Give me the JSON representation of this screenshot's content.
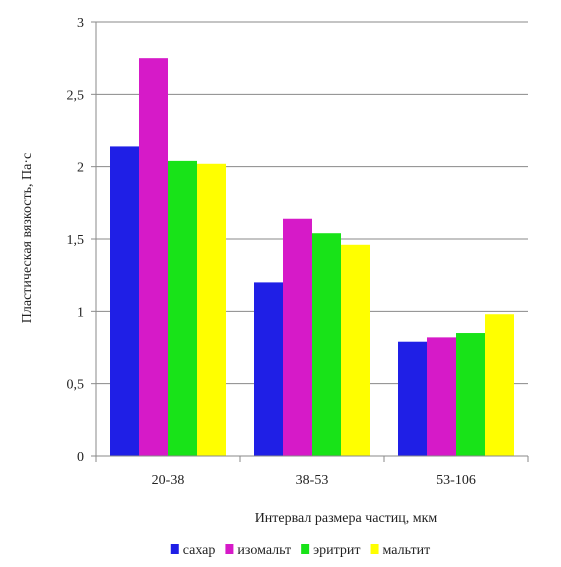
{
  "chart_data": {
    "type": "bar",
    "categories": [
      "20-38",
      "38-53",
      "53-106"
    ],
    "series": [
      {
        "name": "сахар",
        "values": [
          2.14,
          1.2,
          0.79
        ],
        "color": "#1f1fe6"
      },
      {
        "name": "изомальт",
        "values": [
          2.75,
          1.64,
          0.82
        ],
        "color": "#d61ac8"
      },
      {
        "name": "эритрит",
        "values": [
          2.04,
          1.54,
          0.85
        ],
        "color": "#18e318"
      },
      {
        "name": "мальтит",
        "values": [
          2.02,
          1.46,
          0.98
        ],
        "color": "#ffff00"
      }
    ],
    "y_ticks": [
      "0",
      "0,5",
      "1",
      "1,5",
      "2",
      "2,5",
      "3"
    ],
    "ylim": [
      0,
      3
    ],
    "xlabel": "Интервал размера частиц, мкм",
    "ylabel": "Пластическая вязкость, Па·с",
    "grid": true,
    "legend_position": "bottom"
  }
}
